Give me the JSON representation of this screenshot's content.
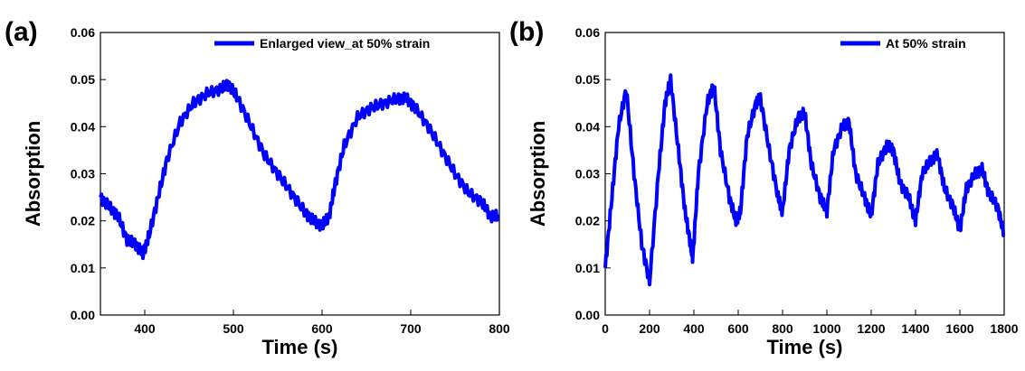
{
  "chart_data": [
    {
      "type": "line",
      "panel_label": "(a)",
      "xlabel": "Time (s)",
      "ylabel": "Absorption",
      "xlim": [
        350,
        800
      ],
      "ylim": [
        0.0,
        0.06
      ],
      "x_ticks": [
        400,
        500,
        600,
        700,
        800
      ],
      "x_tick_labels": [
        "400",
        "500",
        "600",
        "700",
        "800"
      ],
      "y_ticks": [
        0.0,
        0.01,
        0.02,
        0.03,
        0.04,
        0.05,
        0.06
      ],
      "y_tick_labels": [
        "0.00",
        "0.01",
        "0.02",
        "0.03",
        "0.04",
        "0.05",
        "0.06"
      ],
      "legend_position": "top-right",
      "grid": false,
      "series": [
        {
          "name": "Enlarged view_at 50% strain",
          "color": "#0000ff",
          "x": [
            350,
            360,
            370,
            380,
            390,
            398,
            405,
            415,
            425,
            440,
            455,
            470,
            485,
            495,
            505,
            520,
            535,
            550,
            565,
            580,
            590,
            600,
            608,
            615,
            625,
            640,
            655,
            670,
            685,
            695,
            705,
            720,
            735,
            750,
            765,
            780,
            790,
            800
          ],
          "y": [
            0.025,
            0.023,
            0.021,
            0.016,
            0.015,
            0.013,
            0.017,
            0.025,
            0.033,
            0.041,
            0.045,
            0.047,
            0.048,
            0.049,
            0.046,
            0.04,
            0.034,
            0.03,
            0.026,
            0.022,
            0.02,
            0.019,
            0.021,
            0.028,
            0.036,
            0.042,
            0.044,
            0.045,
            0.046,
            0.046,
            0.044,
            0.04,
            0.035,
            0.03,
            0.026,
            0.024,
            0.021,
            0.021
          ]
        }
      ]
    },
    {
      "type": "line",
      "panel_label": "(b)",
      "xlabel": "Time (s)",
      "ylabel": "Absorption",
      "xlim": [
        0,
        1800
      ],
      "ylim": [
        0.0,
        0.06
      ],
      "x_ticks": [
        0,
        200,
        400,
        600,
        800,
        1000,
        1200,
        1400,
        1600,
        1800
      ],
      "x_tick_labels": [
        "0",
        "200",
        "400",
        "600",
        "800",
        "1000",
        "1200",
        "1400",
        "1600",
        "1800"
      ],
      "y_ticks": [
        0.0,
        0.01,
        0.02,
        0.03,
        0.04,
        0.05,
        0.06
      ],
      "y_tick_labels": [
        "0.00",
        "0.01",
        "0.02",
        "0.03",
        "0.04",
        "0.05",
        "0.06"
      ],
      "legend_position": "top-right",
      "grid": false,
      "series": [
        {
          "name": "At 50% strain",
          "color": "#0000ff",
          "x": [
            0,
            30,
            60,
            95,
            130,
            165,
            200,
            240,
            270,
            295,
            330,
            360,
            385,
            395,
            420,
            460,
            490,
            520,
            560,
            590,
            610,
            640,
            680,
            700,
            740,
            780,
            800,
            830,
            870,
            900,
            930,
            970,
            1000,
            1030,
            1070,
            1100,
            1130,
            1170,
            1200,
            1230,
            1270,
            1300,
            1330,
            1370,
            1400,
            1430,
            1470,
            1500,
            1530,
            1570,
            1600,
            1630,
            1670,
            1700,
            1730,
            1770,
            1800
          ],
          "y": [
            0.01,
            0.025,
            0.04,
            0.048,
            0.03,
            0.015,
            0.007,
            0.03,
            0.045,
            0.05,
            0.035,
            0.022,
            0.015,
            0.012,
            0.03,
            0.045,
            0.049,
            0.035,
            0.025,
            0.02,
            0.022,
            0.038,
            0.045,
            0.046,
            0.035,
            0.025,
            0.022,
            0.035,
            0.042,
            0.043,
            0.032,
            0.025,
            0.022,
            0.035,
            0.04,
            0.041,
            0.03,
            0.025,
            0.021,
            0.032,
            0.036,
            0.035,
            0.028,
            0.025,
            0.02,
            0.03,
            0.033,
            0.034,
            0.027,
            0.023,
            0.018,
            0.027,
            0.03,
            0.031,
            0.026,
            0.023,
            0.017
          ]
        }
      ]
    }
  ]
}
